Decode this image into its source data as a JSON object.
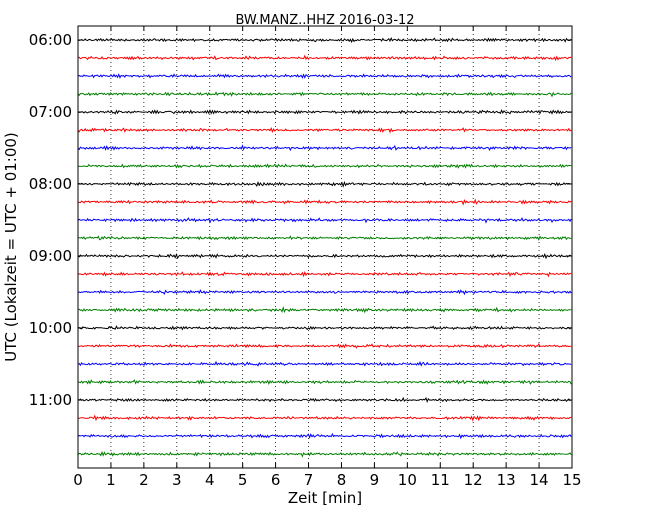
{
  "chart_data": {
    "type": "line",
    "title": "BW.MANZ..HHZ 2016-03-12",
    "xlabel": "Zeit  [min]",
    "ylabel": "UTC (Lokalzeit = UTC + 01:00)",
    "xlim": [
      0,
      15
    ],
    "x_ticks": [
      "0",
      "1",
      "2",
      "3",
      "4",
      "5",
      "6",
      "7",
      "8",
      "9",
      "10",
      "11",
      "12",
      "13",
      "14",
      "15"
    ],
    "y_tick_labels": [
      "06:00",
      "07:00",
      "08:00",
      "09:00",
      "10:00",
      "11:00"
    ],
    "trace_interval_min": 15,
    "start_time": "06:00",
    "trace_count": 24,
    "colors": [
      "#000000",
      "#ff0000",
      "#0000ff",
      "#008000"
    ],
    "grid": "vertical dotted at each minute",
    "legend": "none"
  }
}
